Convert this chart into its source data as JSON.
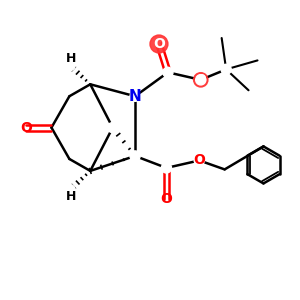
{
  "bg_color": "#ffffff",
  "atom_colors": {
    "N": "#0000ee",
    "O": "#ff0000",
    "C": "#000000",
    "H": "#000000"
  },
  "highlight_O_color": "#ff3333",
  "bond_lw": 1.8,
  "font_size_atom": 10,
  "font_size_H": 9,
  "font_size_small": 8
}
